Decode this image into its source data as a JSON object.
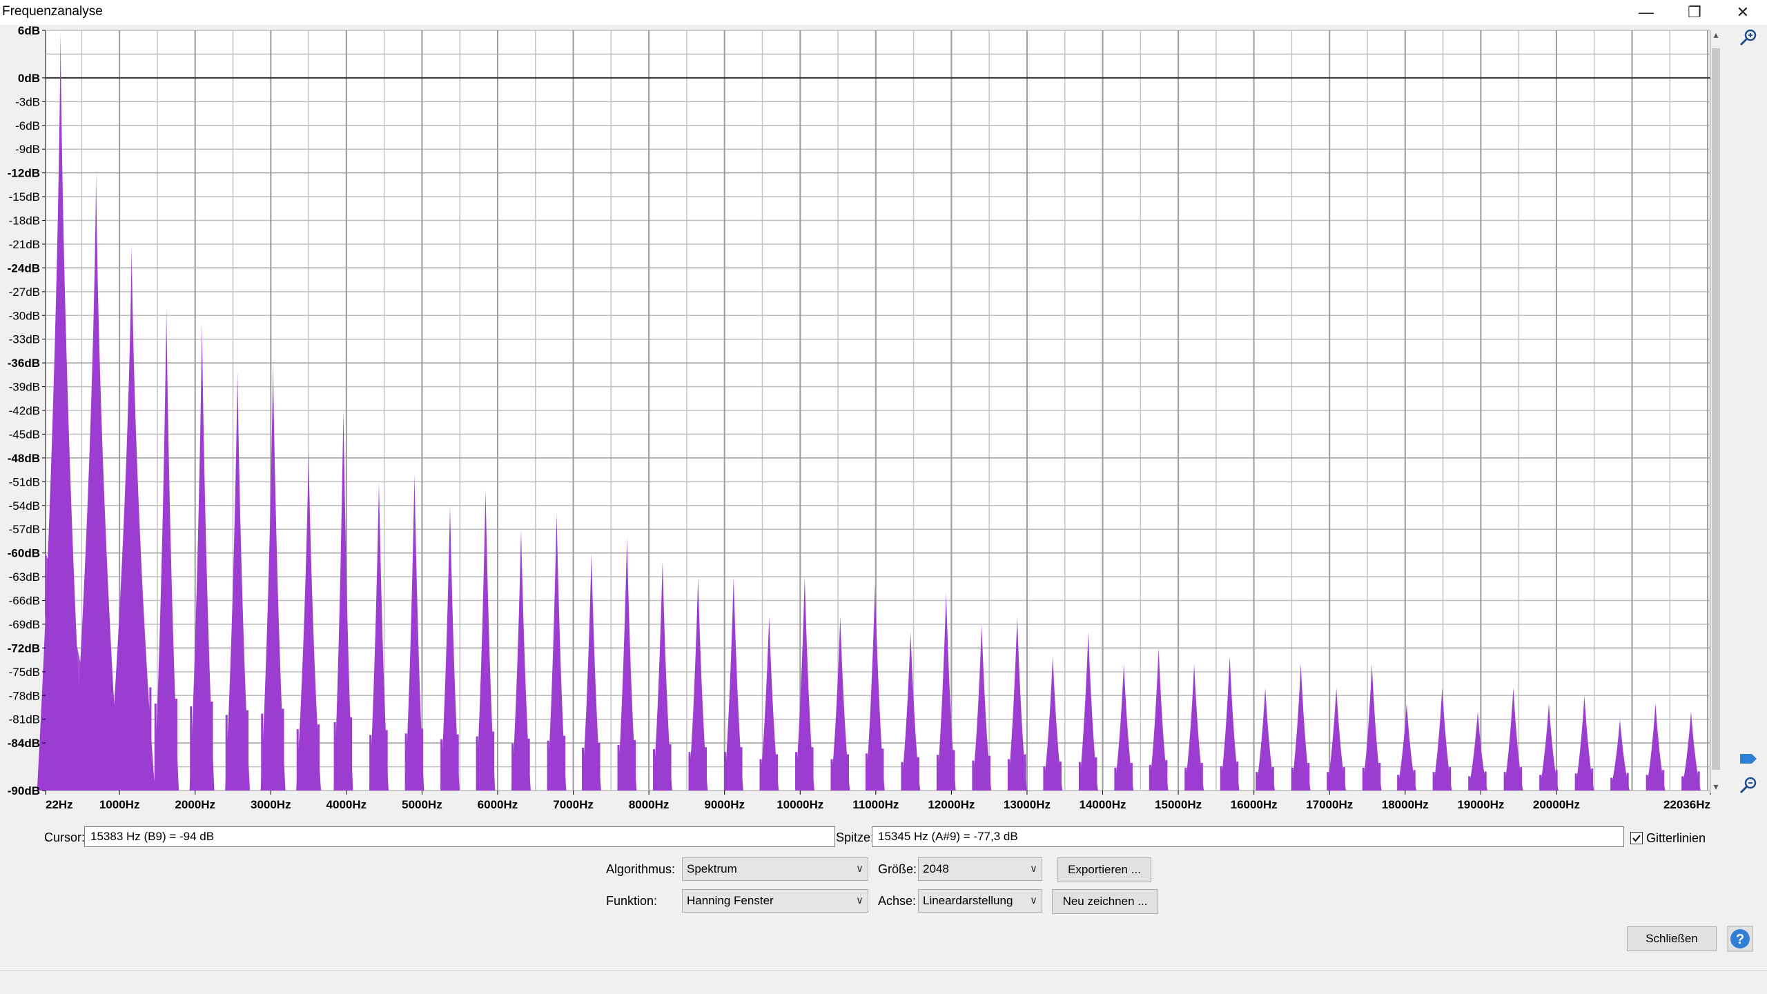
{
  "window": {
    "title": "Frequenzanalyse",
    "minimize_icon": "minimize-icon",
    "restore_icon": "restore-icon",
    "close_icon": "close-icon"
  },
  "chart_data": {
    "type": "area",
    "color": "#9a3dd0",
    "grid": true,
    "ylim": [
      -90,
      6
    ],
    "y_ticks": [
      "6dB",
      "0dB",
      "-3dB",
      "-6dB",
      "-9dB",
      "-12dB",
      "-15dB",
      "-18dB",
      "-21dB",
      "-24dB",
      "-27dB",
      "-30dB",
      "-33dB",
      "-36dB",
      "-39dB",
      "-42dB",
      "-45dB",
      "-48dB",
      "-51dB",
      "-54dB",
      "-57dB",
      "-60dB",
      "-63dB",
      "-66dB",
      "-69dB",
      "-72dB",
      "-75dB",
      "-78dB",
      "-81dB",
      "-84dB",
      "-90dB"
    ],
    "x_ticks": [
      "22Hz",
      "1000Hz",
      "2000Hz",
      "3000Hz",
      "4000Hz",
      "5000Hz",
      "6000Hz",
      "7000Hz",
      "8000Hz",
      "9000Hz",
      "10000Hz",
      "11000Hz",
      "12000Hz",
      "13000Hz",
      "14000Hz",
      "15000Hz",
      "16000Hz",
      "17000Hz",
      "18000Hz",
      "19000Hz",
      "20000Hz",
      "22036Hz"
    ],
    "xlim": [
      22,
      22036
    ],
    "harmonics_hz": [
      220,
      690,
      1160,
      1620,
      2090,
      2560,
      3030,
      3500,
      3960,
      4430,
      4900,
      5370,
      5840,
      6310,
      6780,
      7240,
      7710,
      8180,
      8650,
      9120,
      9590,
      10060,
      10530,
      10990,
      11460,
      11930,
      12400,
      12870,
      13340,
      13810,
      14280,
      14740,
      15210,
      15680,
      16150,
      16620,
      17090,
      17560,
      18020,
      18490,
      18960,
      19430,
      19900,
      20370,
      20840,
      21310,
      21780
    ],
    "peaks_db": [
      6,
      -12,
      -21,
      -29,
      -31,
      -37,
      -36,
      -47,
      -42,
      -51,
      -50,
      -54,
      -52,
      -57,
      -55,
      -60,
      -58,
      -61,
      -63,
      -63,
      -68,
      -63,
      -68,
      -64,
      -70,
      -65,
      -69,
      -68,
      -73,
      -70,
      -74,
      -72,
      -74,
      -73,
      -77,
      -74,
      -77,
      -74,
      -79,
      -77,
      -80,
      -77,
      -79,
      -78,
      -81,
      -79,
      -80
    ]
  },
  "controls": {
    "cursor_label": "Cursor:",
    "cursor_value": "15383 Hz (B9) = -94 dB",
    "peak_label": "Spitze:",
    "peak_value": "15345 Hz (A#9) = -77,3 dB",
    "gridlines_label": "Gitterlinien",
    "gridlines_checked": true,
    "algorithm_label": "Algorithmus:",
    "algorithm_value": "Spektrum",
    "size_label": "Größe:",
    "size_value": "2048",
    "export_button": "Exportieren ...",
    "function_label": "Funktion:",
    "function_value": "Hanning Fenster",
    "axis_label": "Achse:",
    "axis_value": "Lineardarstellung",
    "redraw_button": "Neu zeichnen ...",
    "close_button": "Schließen",
    "help_icon": "help-icon"
  }
}
